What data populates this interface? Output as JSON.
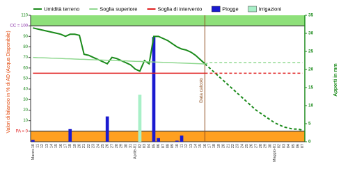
{
  "chart_data": {
    "type": "combo",
    "y_label": "Valori di bilancio in % di AD (Acqua Disponibile)",
    "y2_label": "Apporti in mm",
    "categories": [
      "Marzo-10",
      "11",
      "12",
      "13",
      "14",
      "15",
      "16",
      "17",
      "18",
      "19",
      "20",
      "21",
      "22",
      "23",
      "24",
      "25",
      "26",
      "27",
      "28",
      "29",
      "30",
      "31",
      "Aprile-01",
      "02",
      "03",
      "04",
      "05",
      "06",
      "07",
      "08",
      "09",
      "10",
      "11",
      "12",
      "13",
      "14",
      "15",
      "16",
      "17",
      "18",
      "19",
      "20",
      "21",
      "22",
      "23",
      "24",
      "25",
      "26",
      "27",
      "28",
      "29",
      "30",
      "Maggio-01",
      "02",
      "03",
      "04",
      "05",
      "06",
      "07"
    ],
    "ylim": [
      -10,
      110
    ],
    "yticks": [
      {
        "value": 0,
        "label": "PA = 0",
        "color": "#e02020"
      },
      10,
      20,
      30,
      40,
      50,
      60,
      70,
      80,
      90,
      {
        "value": 100,
        "label": "CC = 100",
        "color": "#8020a0"
      },
      110
    ],
    "y2lim": [
      0,
      35
    ],
    "y2ticks": [
      0,
      5,
      10,
      15,
      20,
      25,
      30,
      35
    ],
    "annotation": {
      "text": "Data calcolo",
      "x_index": 37
    },
    "series": [
      {
        "name": "Umidità terreno",
        "type": "line",
        "color": "#1a8a1a",
        "width": 2,
        "values": [
          98,
          97,
          96,
          95,
          94,
          93,
          92,
          90,
          92,
          92,
          91,
          73,
          72,
          70,
          68,
          66,
          64,
          70,
          69,
          67,
          65,
          63,
          59,
          57,
          67,
          64,
          90,
          90,
          88,
          86,
          83,
          80,
          78,
          77,
          75,
          72,
          68,
          64,
          60,
          56,
          52,
          48,
          44,
          40,
          36,
          32,
          28,
          24,
          20,
          17,
          14,
          11,
          8,
          6,
          4,
          3,
          2,
          2,
          1
        ]
      },
      {
        "name": "Soglia superiore",
        "type": "line",
        "color": "#90d890",
        "width": 1.5,
        "values": [
          70,
          69.8,
          69.7,
          69.5,
          69.3,
          69.2,
          69,
          68.8,
          68.7,
          68.5,
          68.3,
          68.2,
          68,
          67.8,
          67.7,
          67.5,
          67.3,
          67.2,
          67,
          66.8,
          66.7,
          66.5,
          66.3,
          66.2,
          66,
          65.8,
          65.7,
          65.5,
          65.3,
          65.2,
          65,
          64.8,
          64.7,
          64.5,
          64.3,
          64.2,
          64,
          63.8,
          65,
          65,
          65,
          65,
          65,
          65,
          65,
          65,
          65,
          65,
          65,
          65,
          65,
          65,
          65,
          65,
          65,
          65,
          65,
          65,
          65
        ]
      },
      {
        "name": "Soglia di intervento",
        "type": "line",
        "color": "#e02020",
        "width": 1.5,
        "values": [
          55,
          55,
          55,
          55,
          55,
          55,
          55,
          55,
          55,
          55,
          55,
          55,
          55,
          55,
          55,
          55,
          55,
          55,
          55,
          55,
          55,
          55,
          55,
          55,
          55,
          55,
          55,
          55,
          55,
          55,
          55,
          55,
          55,
          55,
          55,
          55,
          55,
          55,
          55,
          55,
          55,
          55,
          55,
          55,
          55,
          55,
          55,
          55,
          55,
          55,
          55,
          55,
          55,
          55,
          55,
          55,
          55,
          55,
          55
        ]
      },
      {
        "name": "Piogge",
        "type": "bar",
        "axis": "y2",
        "color": "#1a1ad0",
        "values": [
          0.5,
          null,
          null,
          null,
          null,
          null,
          null,
          null,
          3.5,
          null,
          null,
          null,
          null,
          null,
          null,
          null,
          7,
          null,
          null,
          null,
          null,
          null,
          null,
          null,
          null,
          null,
          29,
          1,
          null,
          null,
          null,
          0.3,
          1.7,
          null,
          null,
          null,
          null,
          null,
          null,
          null,
          null,
          null,
          null,
          null,
          null,
          null,
          null,
          null,
          null,
          null,
          null,
          null,
          null,
          null,
          null,
          null,
          null,
          null,
          null
        ]
      },
      {
        "name": "Irrigazioni",
        "type": "bar",
        "axis": "y2",
        "color": "#a8f0c8",
        "values": [
          null,
          null,
          null,
          null,
          null,
          null,
          null,
          null,
          null,
          null,
          null,
          null,
          null,
          null,
          null,
          null,
          null,
          null,
          null,
          null,
          null,
          null,
          null,
          13,
          null,
          null,
          null,
          null,
          null,
          null,
          null,
          null,
          null,
          null,
          null,
          null,
          null,
          null,
          null,
          null,
          null,
          null,
          null,
          null,
          null,
          null,
          null,
          null,
          null,
          null,
          null,
          null,
          null,
          null,
          null,
          null,
          null,
          null,
          null
        ]
      }
    ]
  }
}
